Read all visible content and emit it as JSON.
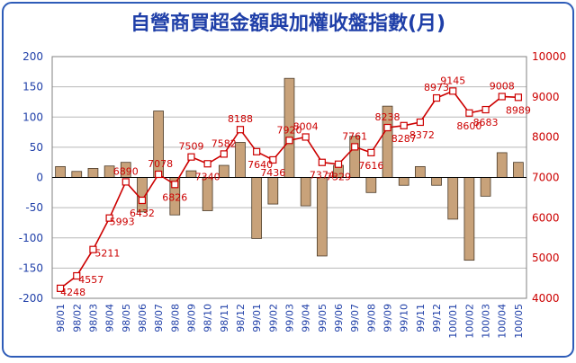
{
  "chart_data": {
    "type": "bar+line",
    "title": "自營商買超金額與加權收盤指數(月)",
    "categories": [
      "98/01",
      "98/02",
      "98/03",
      "98/04",
      "98/05",
      "98/06",
      "98/07",
      "98/08",
      "98/09",
      "98/10",
      "98/11",
      "98/12",
      "99/01",
      "99/02",
      "99/03",
      "99/04",
      "99/05",
      "99/06",
      "99/07",
      "99/08",
      "99/09",
      "99/10",
      "99/11",
      "99/12",
      "100/01",
      "100/02",
      "100/03",
      "100/04",
      "100/05"
    ],
    "series": [
      {
        "type": "bar",
        "axis": "left",
        "color": "#c8a27a",
        "values": [
          18,
          10,
          15,
          19,
          25,
          -57,
          110,
          -62,
          11,
          -55,
          20,
          58,
          -101,
          -44,
          164,
          -47,
          -130,
          20,
          68,
          -25,
          118,
          -13,
          18,
          -13,
          -69,
          -137,
          -31,
          41,
          25
        ]
      },
      {
        "type": "line",
        "axis": "right",
        "color": "#cc0000",
        "values": [
          4248,
          4557,
          5211,
          5993,
          6890,
          6432,
          7078,
          6826,
          7509,
          7340,
          7582,
          8188,
          7640,
          7436,
          7920,
          8004,
          7374,
          7329,
          7761,
          7616,
          8238,
          8287,
          8372,
          8973,
          9145,
          8600,
          8683,
          9008,
          8989
        ],
        "labels": [
          "4248",
          "4557",
          "5211",
          "5993",
          "6890",
          "6432",
          "7078",
          "6826",
          "7509",
          "7340",
          "7582",
          "8188",
          "7640",
          "7436",
          "7920",
          "8004",
          "7374",
          "7329",
          "7761",
          "7616",
          "8238",
          "8287",
          "8372",
          "8973",
          "9145",
          "8600",
          "8683",
          "9008",
          "8989"
        ]
      }
    ],
    "y_left": {
      "min": -200,
      "max": 200,
      "ticks": [
        "200",
        "150",
        "100",
        "50",
        "0",
        "-50",
        "-100",
        "-150",
        "-200"
      ]
    },
    "y_right": {
      "min": 4000,
      "max": 10000,
      "ticks": [
        "10000",
        "9000",
        "8000",
        "7000",
        "6000",
        "5000",
        "4000"
      ]
    },
    "grid": true,
    "legend": "none",
    "colors": {
      "frame": "#2e5cb8",
      "title": "#1f3fa8",
      "left_axis_text": "#1f3fa8",
      "right_axis_text": "#cc0000",
      "grid": "#b8b8b8"
    }
  }
}
